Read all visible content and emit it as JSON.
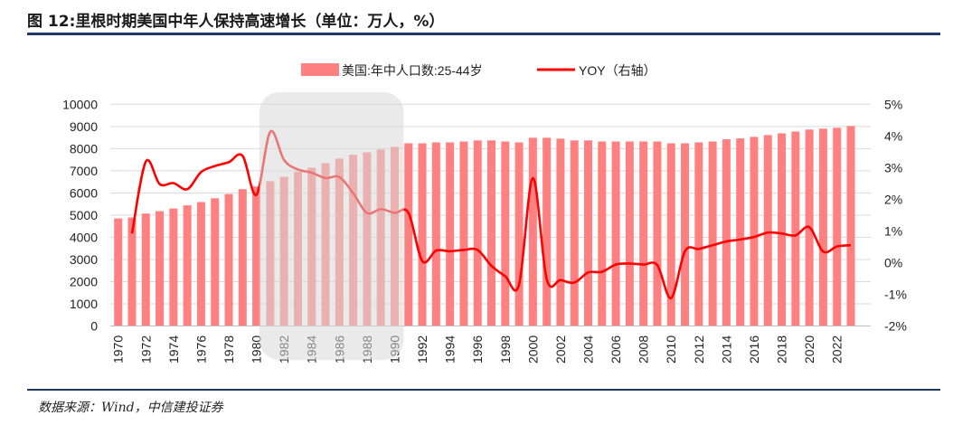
{
  "title": "图 12:里根时期美国中年人保持高速增长（单位：万人，%）",
  "source": "数据来源：Wind，中信建投证券",
  "chart_data": {
    "type": "bar+line",
    "categories": [
      1970,
      1971,
      1972,
      1973,
      1974,
      1975,
      1976,
      1977,
      1978,
      1979,
      1980,
      1981,
      1982,
      1983,
      1984,
      1985,
      1986,
      1987,
      1988,
      1989,
      1990,
      1991,
      1992,
      1993,
      1994,
      1995,
      1996,
      1997,
      1998,
      1999,
      2000,
      2001,
      2002,
      2003,
      2004,
      2005,
      2006,
      2007,
      2008,
      2009,
      2010,
      2011,
      2012,
      2013,
      2014,
      2015,
      2016,
      2017,
      2018,
      2019,
      2020,
      2021,
      2022,
      2023
    ],
    "x_tick_labels": [
      "1970",
      "1972",
      "1974",
      "1976",
      "1978",
      "1980",
      "1982",
      "1984",
      "1986",
      "1988",
      "1990",
      "1992",
      "1994",
      "1996",
      "1998",
      "2000",
      "2002",
      "2004",
      "2006",
      "2008",
      "2010",
      "2012",
      "2014",
      "2016",
      "2018",
      "2020",
      "2022"
    ],
    "series": [
      {
        "name": "美国:年中人口数:25-44岁",
        "type": "bar",
        "axis": "left",
        "color": "#ff8080",
        "values": [
          4850,
          4890,
          5070,
          5180,
          5300,
          5440,
          5590,
          5760,
          5950,
          6170,
          6290,
          6530,
          6730,
          6950,
          7140,
          7340,
          7550,
          7720,
          7830,
          7960,
          8080,
          8240,
          8240,
          8280,
          8280,
          8320,
          8370,
          8370,
          8320,
          8280,
          8490,
          8490,
          8450,
          8370,
          8370,
          8320,
          8320,
          8320,
          8320,
          8320,
          8240,
          8240,
          8280,
          8320,
          8420,
          8460,
          8530,
          8610,
          8690,
          8770,
          8860,
          8900,
          8940,
          9020
        ]
      },
      {
        "name": "YOY（右轴）",
        "type": "line",
        "axis": "right",
        "color": "#ff0000",
        "values": [
          null,
          0.92,
          3.19,
          2.48,
          2.51,
          2.32,
          2.86,
          3.05,
          3.17,
          3.37,
          2.14,
          4.13,
          3.24,
          2.94,
          2.84,
          2.67,
          2.7,
          2.19,
          1.57,
          1.69,
          1.57,
          1.57,
          0.05,
          0.38,
          0.36,
          0.4,
          0.4,
          -0.1,
          -0.43,
          -0.69,
          2.67,
          -0.52,
          -0.55,
          -0.63,
          -0.31,
          -0.29,
          -0.06,
          -0.03,
          -0.06,
          -0.08,
          -1.12,
          0.36,
          0.43,
          0.55,
          0.67,
          0.73,
          0.81,
          0.95,
          0.92,
          0.86,
          1.12,
          0.35,
          0.51,
          0.55
        ]
      }
    ],
    "y_left": {
      "range": [
        0,
        10000
      ],
      "ticks": [
        "0",
        "1000",
        "2000",
        "3000",
        "4000",
        "5000",
        "6000",
        "7000",
        "8000",
        "9000",
        "10000"
      ]
    },
    "y_right": {
      "range": [
        -2,
        5
      ],
      "ticks": [
        "-2%",
        "-1%",
        "0%",
        "1%",
        "2%",
        "3%",
        "4%",
        "5%"
      ]
    },
    "grid": true,
    "legend": "top",
    "highlight": {
      "from": 1981,
      "to": 1990,
      "color": "#d9d9d9"
    }
  }
}
